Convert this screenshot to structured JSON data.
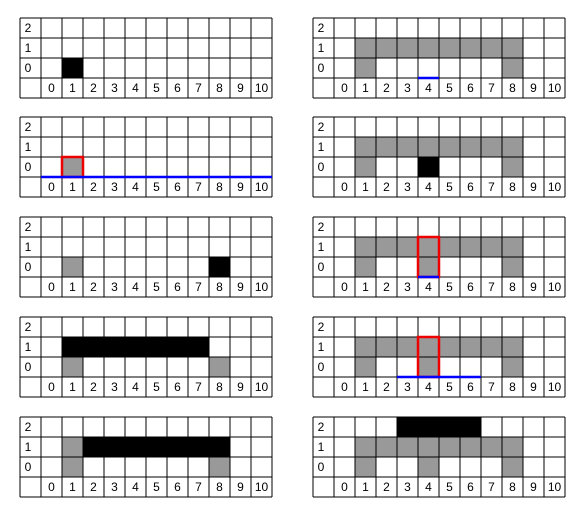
{
  "panels": [
    {
      "row_labels": [
        2,
        1,
        0
      ],
      "col_labels": [
        0,
        1,
        2,
        3,
        4,
        5,
        6,
        7,
        8,
        9,
        10
      ]
    },
    {
      "row_labels": [
        2,
        1,
        0
      ],
      "col_labels": [
        0,
        1,
        2,
        3,
        4,
        5,
        6,
        7,
        8,
        9,
        10
      ]
    },
    {
      "row_labels": [
        2,
        1,
        0
      ],
      "col_labels": [
        0,
        1,
        2,
        3,
        4,
        5,
        6,
        7,
        8,
        9,
        10
      ]
    },
    {
      "row_labels": [
        2,
        1,
        0
      ],
      "col_labels": [
        0,
        1,
        2,
        3,
        4,
        5,
        6,
        7,
        8,
        9,
        10
      ]
    },
    {
      "row_labels": [
        2,
        1,
        0
      ],
      "col_labels": [
        0,
        1,
        2,
        3,
        4,
        5,
        6,
        7,
        8,
        9,
        10
      ]
    },
    {
      "row_labels": [
        2,
        1,
        0
      ],
      "col_labels": [
        0,
        1,
        2,
        3,
        4,
        5,
        6,
        7,
        8,
        9,
        10
      ]
    },
    {
      "row_labels": [
        2,
        1,
        0
      ],
      "col_labels": [
        0,
        1,
        2,
        3,
        4,
        5,
        6,
        7,
        8,
        9,
        10
      ]
    },
    {
      "row_labels": [
        2,
        1,
        0
      ],
      "col_labels": [
        0,
        1,
        2,
        3,
        4,
        5,
        6,
        7,
        8,
        9,
        10
      ]
    },
    {
      "row_labels": [
        2,
        1,
        0
      ],
      "col_labels": [
        0,
        1,
        2,
        3,
        4,
        5,
        6,
        7,
        8,
        9,
        10
      ]
    },
    {
      "row_labels": [
        2,
        1,
        0
      ],
      "col_labels": [
        0,
        1,
        2,
        3,
        4,
        5,
        6,
        7,
        8,
        9,
        10
      ]
    }
  ]
}
